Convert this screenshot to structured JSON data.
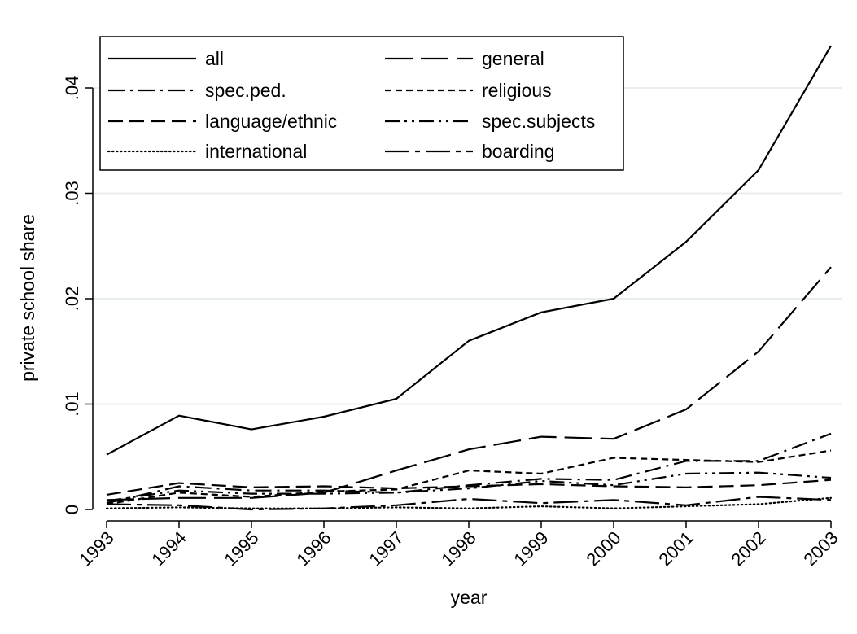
{
  "chart_data": {
    "type": "line",
    "xlabel": "year",
    "ylabel": "private school share",
    "x": [
      1993,
      1994,
      1995,
      1996,
      1997,
      1998,
      1999,
      2000,
      2001,
      2002,
      2003
    ],
    "x_tick_labels": [
      "1993",
      "1994",
      "1995",
      "1996",
      "1997",
      "1998",
      "1999",
      "2000",
      "2001",
      "2002",
      "2003"
    ],
    "y_ticks": [
      0,
      0.01,
      0.02,
      0.03,
      0.04
    ],
    "y_tick_labels": [
      "0",
      ".01",
      ".02",
      ".03",
      ".04"
    ],
    "ylim": [
      -0.001,
      0.0455
    ],
    "xlim": [
      1993,
      2003
    ],
    "grid": "horizontal",
    "legend_position": "top-left",
    "legend_columns": 2,
    "series": [
      {
        "name": "all",
        "dash": "solid",
        "values": [
          0.0052,
          0.0089,
          0.0076,
          0.0088,
          0.0105,
          0.016,
          0.0187,
          0.02,
          0.0254,
          0.0322,
          0.044
        ]
      },
      {
        "name": "general",
        "dash": "long-dash",
        "values": [
          0.0009,
          0.0011,
          0.0011,
          0.0016,
          0.0037,
          0.0057,
          0.0069,
          0.0067,
          0.0095,
          0.015,
          0.023
        ]
      },
      {
        "name": "spec.ped.",
        "dash": "dash-dot",
        "values": [
          0.0006,
          0.0022,
          0.0018,
          0.0018,
          0.0016,
          0.0023,
          0.0029,
          0.0028,
          0.0046,
          0.0046,
          0.0072
        ]
      },
      {
        "name": "religious",
        "dash": "short-dash",
        "values": [
          0.0005,
          0.0016,
          0.0012,
          0.0017,
          0.0019,
          0.0037,
          0.0034,
          0.0049,
          0.0047,
          0.0045,
          0.0056
        ]
      },
      {
        "name": "language/ethnic",
        "dash": "medium-dash",
        "values": [
          0.0014,
          0.0025,
          0.0021,
          0.0022,
          0.002,
          0.0022,
          0.0024,
          0.0022,
          0.0021,
          0.0023,
          0.0028
        ]
      },
      {
        "name": "spec.subjects",
        "dash": "dash-dot-dot",
        "values": [
          0.0008,
          0.0018,
          0.0015,
          0.0015,
          0.0016,
          0.002,
          0.0027,
          0.0023,
          0.0034,
          0.0035,
          0.003
        ]
      },
      {
        "name": "international",
        "dash": "dotted",
        "values": [
          0.0001,
          0.0002,
          0.0001,
          0.0001,
          0.0002,
          0.0001,
          0.0003,
          0.0001,
          0.0003,
          0.0005,
          0.0011
        ]
      },
      {
        "name": "boarding",
        "dash": "long-dash-dot",
        "values": [
          0.0005,
          0.0004,
          0.0,
          0.0001,
          0.0004,
          0.001,
          0.0006,
          0.0009,
          0.0004,
          0.0012,
          0.0009
        ]
      }
    ]
  },
  "colors": {
    "line": "#000000",
    "grid": "#e8eef0",
    "axis": "#000000",
    "background": "#ffffff"
  }
}
